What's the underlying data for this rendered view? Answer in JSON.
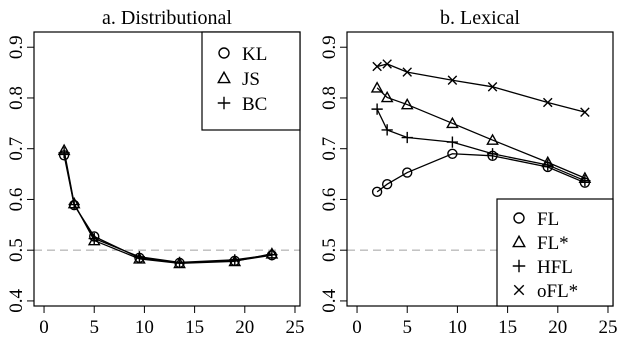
{
  "chart_data": [
    {
      "type": "line",
      "title": "a. Distributional",
      "xlabel": "",
      "ylabel": "",
      "xlim": [
        -1,
        25.5
      ],
      "ylim": [
        0.39,
        0.93
      ],
      "x_ticks": [
        0,
        5,
        10,
        15,
        20,
        25
      ],
      "y_ticks": [
        0.4,
        0.5,
        0.6,
        0.7,
        0.8,
        0.9
      ],
      "reference_line": {
        "y": 0.5,
        "style": "dashed",
        "color": "#bbbbbb"
      },
      "legend_position": "top-right",
      "series": [
        {
          "name": "KL",
          "marker": "circle",
          "x": [
            2,
            3,
            5,
            9.5,
            13.5,
            19,
            22.7
          ],
          "y": [
            0.687,
            0.589,
            0.527,
            0.485,
            0.475,
            0.479,
            0.49
          ]
        },
        {
          "name": "JS",
          "marker": "triangle",
          "x": [
            2,
            3,
            5,
            9.5,
            13.5,
            19,
            22.7
          ],
          "y": [
            0.697,
            0.592,
            0.519,
            0.483,
            0.474,
            0.478,
            0.493
          ]
        },
        {
          "name": "BC",
          "marker": "plus",
          "x": [
            2,
            3,
            5,
            9.5,
            13.5,
            19,
            22.7
          ],
          "y": [
            0.692,
            0.59,
            0.523,
            0.487,
            0.476,
            0.481,
            0.491
          ]
        }
      ]
    },
    {
      "type": "line",
      "title": "b. Lexical",
      "xlabel": "",
      "ylabel": "",
      "xlim": [
        -1,
        25.5
      ],
      "ylim": [
        0.39,
        0.93
      ],
      "x_ticks": [
        0,
        5,
        10,
        15,
        20,
        25
      ],
      "y_ticks": [
        0.4,
        0.5,
        0.6,
        0.7,
        0.8,
        0.9
      ],
      "reference_line": {
        "y": 0.5,
        "style": "dashed",
        "color": "#bbbbbb"
      },
      "legend_position": "bottom-right",
      "series": [
        {
          "name": "FL",
          "marker": "circle",
          "x": [
            2,
            3,
            5,
            9.5,
            13.5,
            19,
            22.7
          ],
          "y": [
            0.615,
            0.63,
            0.653,
            0.69,
            0.686,
            0.664,
            0.633
          ]
        },
        {
          "name": "FL*",
          "marker": "triangle",
          "x": [
            2,
            3,
            5,
            9.5,
            13.5,
            19,
            22.7
          ],
          "y": [
            0.82,
            0.801,
            0.787,
            0.75,
            0.717,
            0.673,
            0.642
          ]
        },
        {
          "name": "HFL",
          "marker": "plus",
          "x": [
            2,
            3,
            5,
            9.5,
            13.5,
            19,
            22.7
          ],
          "y": [
            0.778,
            0.737,
            0.722,
            0.713,
            0.69,
            0.668,
            0.637
          ]
        },
        {
          "name": "oFL*",
          "marker": "cross",
          "x": [
            2,
            3,
            5,
            9.5,
            13.5,
            19,
            22.7
          ],
          "y": [
            0.862,
            0.867,
            0.851,
            0.835,
            0.822,
            0.791,
            0.772
          ]
        }
      ]
    }
  ]
}
